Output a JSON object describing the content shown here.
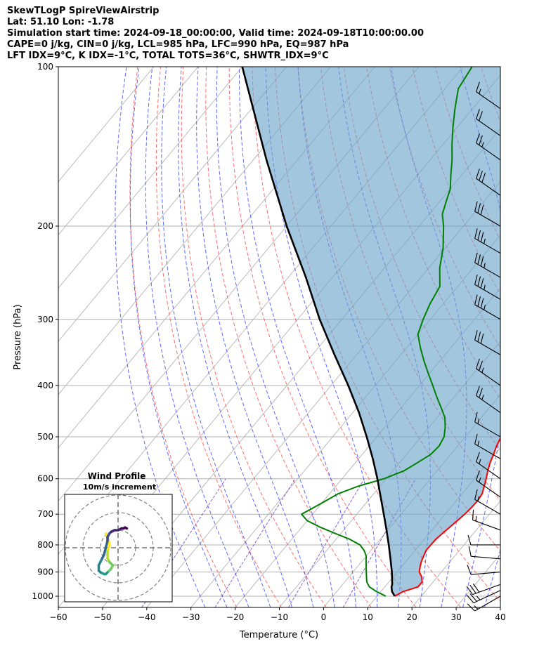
{
  "header": {
    "title": "SkewTLogP SpireViewAirstrip",
    "location": "Lat: 51.10   Lon: -1.78",
    "times": "Simulation start time: 2024-09-18_00:00:00, Valid time: 2024-09-18T10:00:00.00",
    "indices1": "CAPE=0 j/kg, CIN=0 j/kg, LCL=985 hPa, LFC=990 hPa, EQ=987 hPa",
    "indices2": "LFT IDX=9°C, K IDX=-1°C, TOTAL TOTS=36°C, SHWTR_IDX=9°C"
  },
  "colors": {
    "temperature": "#ff0000",
    "dewpoint": "#008000",
    "parcel": "#000000",
    "cape_fill": "#6ba3cc",
    "dry_adiabat": "#ff5555",
    "moist_adiabat": "#3344ff",
    "mixing_ratio": "#7744cc",
    "isotherm": "#888888"
  },
  "chart_data": [
    {
      "type": "line",
      "subtype": "skew-t log-p",
      "xlabel": "Temperature (°C)",
      "ylabel": "Pressure (hPa)",
      "xlim": [
        -60,
        40
      ],
      "ylim": [
        1050,
        100
      ],
      "x_ticks": [
        -60,
        -50,
        -40,
        -30,
        -20,
        -10,
        0,
        10,
        20,
        30,
        40
      ],
      "x_tick_labels": [
        "−60",
        "−50",
        "−40",
        "−30",
        "−20",
        "−10",
        "0",
        "10",
        "20",
        "30",
        "40"
      ],
      "y_ticks": [
        100,
        200,
        300,
        400,
        500,
        600,
        700,
        800,
        900,
        1000
      ],
      "y_tick_labels": [
        "100",
        "200",
        "300",
        "400",
        "500",
        "600",
        "700",
        "800",
        "900",
        "1000"
      ],
      "grid": true,
      "series": [
        {
          "name": "Temperature",
          "points": [
            [
              1000,
              14
            ],
            [
              980,
              15
            ],
            [
              960,
              17.5
            ],
            [
              940,
              17.5
            ],
            [
              920,
              16.5
            ],
            [
              900,
              15
            ],
            [
              880,
              14.2
            ],
            [
              860,
              13.5
            ],
            [
              840,
              13
            ],
            [
              820,
              12.5
            ],
            [
              800,
              12.5
            ],
            [
              780,
              12.6
            ],
            [
              760,
              13
            ],
            [
              740,
              13.5
            ],
            [
              700,
              14.4
            ],
            [
              680,
              14.7
            ],
            [
              660,
              14.8
            ],
            [
              640,
              14.5
            ],
            [
              600,
              12.6
            ],
            [
              580,
              11.5
            ],
            [
              560,
              10.5
            ],
            [
              540,
              9.7
            ],
            [
              520,
              8.8
            ],
            [
              500,
              8.1
            ],
            [
              480,
              7.8
            ],
            [
              460,
              7.3
            ],
            [
              440,
              6.5
            ],
            [
              420,
              5.2
            ],
            [
              400,
              3.8
            ],
            [
              380,
              2.3
            ],
            [
              360,
              0.7
            ],
            [
              340,
              -1.0
            ],
            [
              320,
              -3.0
            ],
            [
              300,
              -5.1
            ],
            [
              280,
              -7.6
            ],
            [
              260,
              -10.3
            ],
            [
              240,
              -13.5
            ],
            [
              220,
              -16.8
            ],
            [
              210,
              -18.7
            ],
            [
              200,
              -20.9
            ],
            [
              190,
              -23.5
            ],
            [
              180,
              -26.5
            ],
            [
              170,
              -29.8
            ],
            [
              160,
              -32.2
            ],
            [
              150,
              -33.9
            ],
            [
              140,
              -36.5
            ],
            [
              130,
              -40.1
            ],
            [
              120,
              -43.9
            ],
            [
              110,
              -47.5
            ],
            [
              100,
              -50.8
            ]
          ]
        },
        {
          "name": "Dewpoint",
          "points": [
            [
              1000,
              12
            ],
            [
              980,
              9
            ],
            [
              960,
              6.5
            ],
            [
              940,
              5
            ],
            [
              920,
              4
            ],
            [
              900,
              3
            ],
            [
              880,
              2
            ],
            [
              860,
              1
            ],
            [
              840,
              0
            ],
            [
              820,
              -1.5
            ],
            [
              800,
              -3.5
            ],
            [
              780,
              -7
            ],
            [
              760,
              -11.5
            ],
            [
              740,
              -16
            ],
            [
              720,
              -20
            ],
            [
              700,
              -22.5
            ],
            [
              680,
              -21
            ],
            [
              660,
              -19.5
            ],
            [
              640,
              -18
            ],
            [
              620,
              -15
            ],
            [
              600,
              -10.5
            ],
            [
              580,
              -7.5
            ],
            [
              560,
              -6
            ],
            [
              540,
              -4.5
            ],
            [
              520,
              -4.2
            ],
            [
              500,
              -4.8
            ],
            [
              480,
              -6.3
            ],
            [
              460,
              -8.2
            ],
            [
              440,
              -11
            ],
            [
              420,
              -14
            ],
            [
              400,
              -17
            ],
            [
              380,
              -20.2
            ],
            [
              360,
              -23.5
            ],
            [
              340,
              -26.8
            ],
            [
              320,
              -30
            ],
            [
              300,
              -31.6
            ],
            [
              280,
              -33
            ],
            [
              260,
              -34
            ],
            [
              240,
              -37.5
            ],
            [
              220,
              -40.5
            ],
            [
              200,
              -44.5
            ],
            [
              190,
              -47
            ],
            [
              180,
              -48.5
            ],
            [
              170,
              -50
            ],
            [
              160,
              -52.5
            ],
            [
              150,
              -55
            ],
            [
              140,
              -58
            ],
            [
              130,
              -61
            ],
            [
              120,
              -64
            ],
            [
              110,
              -67
            ],
            [
              100,
              -68
            ]
          ]
        },
        {
          "name": "Parcel",
          "points": [
            [
              1000,
              14
            ],
            [
              980,
              12.5
            ],
            [
              960,
              11.5
            ],
            [
              950,
              11.2
            ],
            [
              900,
              8.8
            ],
            [
              850,
              6.0
            ],
            [
              800,
              3.0
            ],
            [
              750,
              -0.3
            ],
            [
              700,
              -3.9
            ],
            [
              650,
              -7.8
            ],
            [
              600,
              -12.0
            ],
            [
              550,
              -16.8
            ],
            [
              500,
              -22.3
            ],
            [
              450,
              -28.6
            ],
            [
              400,
              -36.1
            ],
            [
              350,
              -45.0
            ],
            [
              300,
              -55.0
            ],
            [
              250,
              -66.0
            ],
            [
              200,
              -80.0
            ],
            [
              150,
              -97.0
            ],
            [
              100,
              -120.0
            ]
          ]
        }
      ],
      "shaded": {
        "name": "CAPE/CIN region",
        "between": [
          "Parcel",
          "Temperature"
        ],
        "p_range": [
          1000,
          100
        ]
      },
      "dry_adiabats_theta_K": [
        250,
        260,
        270,
        280,
        290,
        300,
        310,
        320,
        330,
        340,
        350,
        360,
        370,
        380,
        400,
        420
      ],
      "moist_adiabats_start_C": [
        -30,
        -25,
        -20,
        -15,
        -10,
        -5,
        0,
        5,
        10,
        15,
        20,
        25,
        30,
        35
      ],
      "mixing_ratio_lines_gkg": [
        0.1,
        0.5,
        2,
        5
      ],
      "wind_barbs": [
        {
          "p": 1000,
          "speed_kt": 15,
          "dir_deg": 240
        },
        {
          "p": 975,
          "speed_kt": 25,
          "dir_deg": 245
        },
        {
          "p": 950,
          "speed_kt": 30,
          "dir_deg": 250
        },
        {
          "p": 900,
          "speed_kt": 10,
          "dir_deg": 265
        },
        {
          "p": 850,
          "speed_kt": 10,
          "dir_deg": 275
        },
        {
          "p": 800,
          "speed_kt": 10,
          "dir_deg": 270
        },
        {
          "p": 750,
          "speed_kt": 15,
          "dir_deg": 290
        },
        {
          "p": 700,
          "speed_kt": 15,
          "dir_deg": 300
        },
        {
          "p": 650,
          "speed_kt": 15,
          "dir_deg": 305
        },
        {
          "p": 600,
          "speed_kt": 15,
          "dir_deg": 305
        },
        {
          "p": 550,
          "speed_kt": 15,
          "dir_deg": 300
        },
        {
          "p": 500,
          "speed_kt": 15,
          "dir_deg": 300
        },
        {
          "p": 450,
          "speed_kt": 25,
          "dir_deg": 305
        },
        {
          "p": 400,
          "speed_kt": 25,
          "dir_deg": 305
        },
        {
          "p": 350,
          "speed_kt": 30,
          "dir_deg": 300
        },
        {
          "p": 300,
          "speed_kt": 35,
          "dir_deg": 300
        },
        {
          "p": 275,
          "speed_kt": 35,
          "dir_deg": 300
        },
        {
          "p": 250,
          "speed_kt": 35,
          "dir_deg": 300
        },
        {
          "p": 225,
          "speed_kt": 35,
          "dir_deg": 300
        },
        {
          "p": 200,
          "speed_kt": 30,
          "dir_deg": 300
        },
        {
          "p": 175,
          "speed_kt": 30,
          "dir_deg": 305
        },
        {
          "p": 150,
          "speed_kt": 25,
          "dir_deg": 305
        },
        {
          "p": 135,
          "speed_kt": 20,
          "dir_deg": 305
        },
        {
          "p": 120,
          "speed_kt": 15,
          "dir_deg": 305
        }
      ]
    },
    {
      "type": "line",
      "subtype": "hodograph",
      "title": "Wind Profile\n10m/s increment",
      "title_lines": [
        "Wind Profile",
        "10m/s increment"
      ],
      "ring_increment_ms": 10,
      "rings_ms": [
        10,
        20,
        30
      ],
      "points": [
        [
          -7,
          -8
        ],
        [
          -6,
          -6
        ],
        [
          -5,
          -3
        ],
        [
          -5,
          -1
        ],
        [
          -6,
          2
        ],
        [
          -6,
          4
        ],
        [
          -6,
          6
        ],
        [
          -5,
          8
        ],
        [
          -3,
          10
        ],
        [
          -4,
          12
        ],
        [
          -6,
          14
        ],
        [
          -7,
          15
        ],
        [
          -8,
          15
        ],
        [
          -10,
          14
        ],
        [
          -11,
          13
        ],
        [
          -11,
          10
        ],
        [
          -10,
          8
        ],
        [
          -9,
          6
        ],
        [
          -8,
          4
        ],
        [
          -7,
          0
        ],
        [
          -6,
          -4
        ],
        [
          -6,
          -6
        ],
        [
          -5,
          -8
        ],
        [
          -4,
          -9
        ],
        [
          -2,
          -10
        ],
        [
          0,
          -10
        ],
        [
          2,
          -11
        ],
        [
          3,
          -11
        ],
        [
          4,
          -11.5
        ],
        [
          5,
          -11
        ]
      ]
    }
  ]
}
